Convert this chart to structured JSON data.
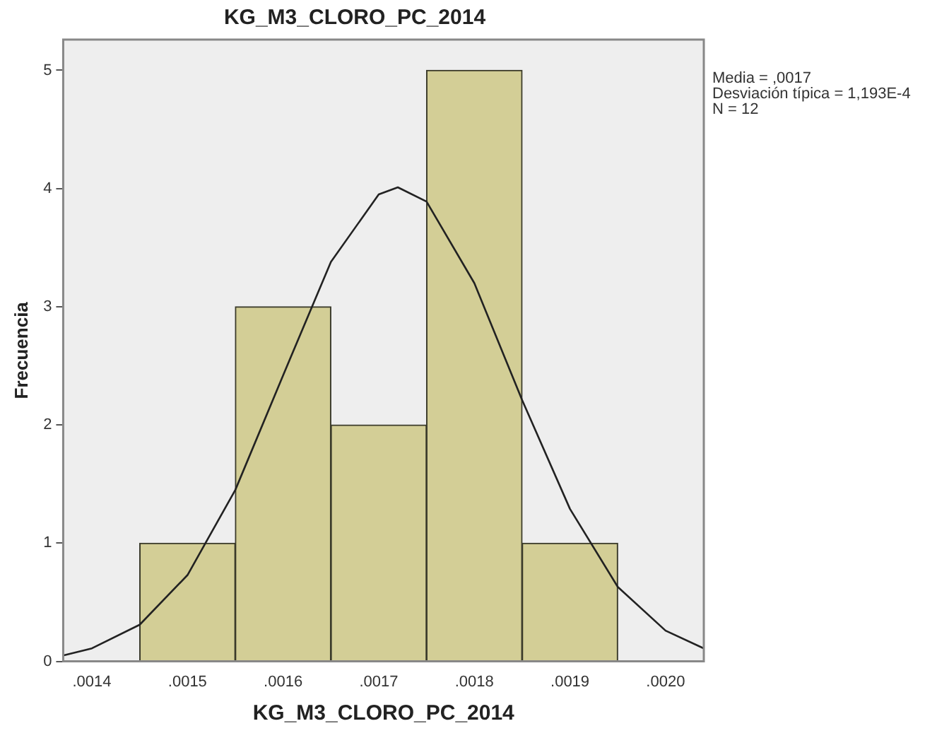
{
  "chart_data": {
    "type": "histogram",
    "title": "KG_M3_CLORO_PC_2014",
    "xlabel": "KG_M3_CLORO_PC_2014",
    "ylabel": "Frecuencia",
    "bins": [
      0.00145,
      0.00155,
      0.00165,
      0.00175,
      0.00185,
      0.00195
    ],
    "values": [
      1,
      3,
      2,
      5,
      1
    ],
    "color": "#d3ce96",
    "series": [
      {
        "type": "line",
        "color": "#222222",
        "x": [
          0.00137,
          0.0014,
          0.00145,
          0.0015,
          0.00155,
          0.0016,
          0.00165,
          0.0017,
          0.00172,
          0.00175,
          0.0018,
          0.00185,
          0.0019,
          0.00195,
          0.002,
          0.00204
        ],
        "values": [
          0.05,
          0.11,
          0.31,
          0.73,
          1.45,
          2.42,
          3.38,
          3.95,
          4.01,
          3.89,
          3.2,
          2.21,
          1.29,
          0.63,
          0.26,
          0.11
        ]
      }
    ],
    "xlim": [
      0.00137,
      0.00204
    ],
    "xticks": [
      {
        "value": 0.0014,
        "label": ".0014"
      },
      {
        "value": 0.0015,
        "label": ".0015"
      },
      {
        "value": 0.0016,
        "label": ".0016"
      },
      {
        "value": 0.0017,
        "label": ".0017"
      },
      {
        "value": 0.0018,
        "label": ".0018"
      },
      {
        "value": 0.0019,
        "label": ".0019"
      },
      {
        "value": 0.002,
        "label": ".0020"
      }
    ],
    "ylim": [
      0,
      5.26
    ],
    "yticks": [
      0,
      1,
      2,
      3,
      4,
      5
    ],
    "grid": false,
    "legend": false,
    "annotations": [
      "Media = ,0017",
      "Desviación típica = 1,193E-4",
      "N = 12"
    ]
  }
}
